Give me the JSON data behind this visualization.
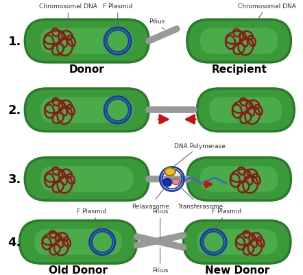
{
  "bg_color": "#ffffff",
  "bacteria_fill_light": "#4ab54a",
  "bacteria_fill": "#3a9a3a",
  "bacteria_edge": "#2a7a2a",
  "dna_color": "#8b1a1a",
  "plasmid_color": "#1a3aaa",
  "pilius_color": "#999999",
  "arrow_color": "#cc1111",
  "step_label_color": "#000000",
  "yellow_blob": "#e8c020",
  "blue_blob": "#1030bb",
  "pink_blob": "#e89090",
  "wavy_color": "#3366cc",
  "step_labels": [
    "1.",
    "2.",
    "3.",
    "4."
  ],
  "annotation_1_left": "Chromosomal DNA",
  "annotation_1_plasmid": "F Plasmid",
  "annotation_1_pilius": "Pilius",
  "annotation_1_right": "Chromosomal DNA",
  "annotation_3_poly": "DNA Polymerase",
  "annotation_3_relax": "Relaxasome",
  "annotation_3_trans": "Transferasome",
  "annotation_4_plasmid_left": "F Plasmid",
  "annotation_4_plasmid_right": "F Plasmid",
  "annotation_4_pilius_top": "Pilius",
  "annotation_4_pilius_bot": "Pilius"
}
